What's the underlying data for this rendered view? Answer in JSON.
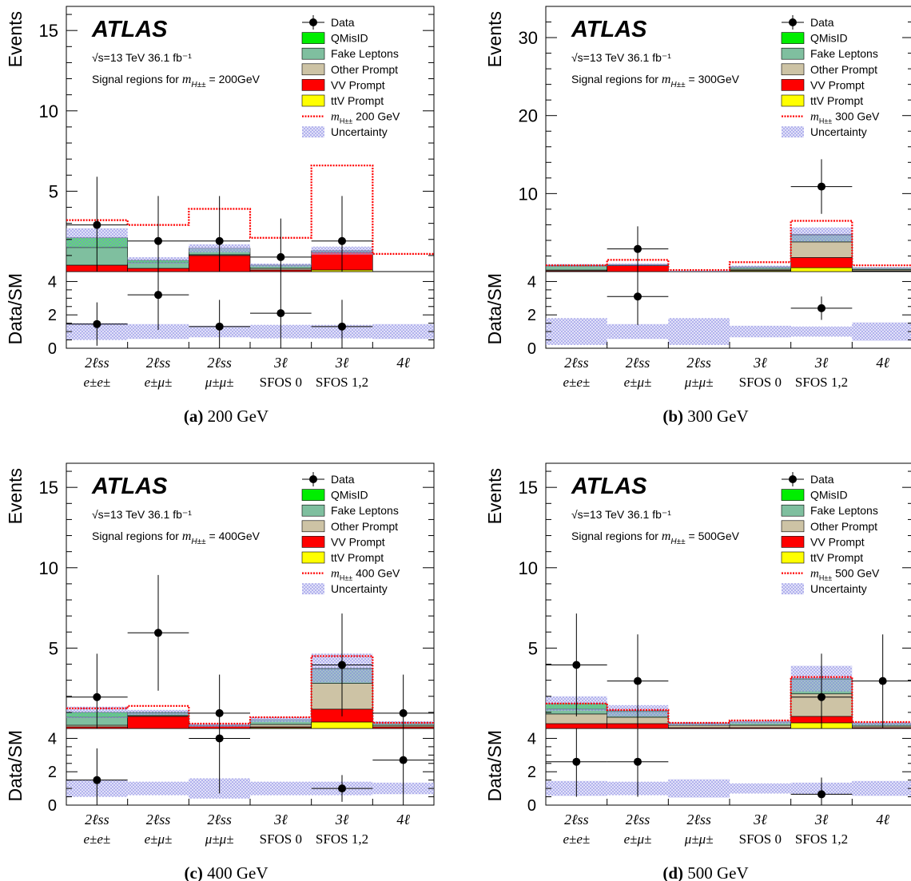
{
  "common": {
    "logo": "ATLAS",
    "energy": "√s=13 TeV  36.1 fb⁻¹",
    "y_label_top": "Events",
    "y_label_bottom": "Data/SM",
    "legend": [
      {
        "key": "data",
        "label": "Data"
      },
      {
        "key": "qmisid",
        "label": "QMisID",
        "color": "#00ee00"
      },
      {
        "key": "fake",
        "label": "Fake Leptons",
        "color": "#7fbf9f"
      },
      {
        "key": "other",
        "label": "Other Prompt",
        "color": "#cdc3a5"
      },
      {
        "key": "vv",
        "label": "VV Prompt",
        "color": "#ff0000"
      },
      {
        "key": "ttv",
        "label": "ttV Prompt",
        "color": "#ffff00"
      },
      {
        "key": "signal",
        "label": "m_H±±",
        "color": "#ff0000"
      },
      {
        "key": "unc",
        "label": "Uncertainty",
        "color": "#9999ee"
      }
    ],
    "categories": [
      {
        "top": "2ℓss",
        "bottom": "e±e±"
      },
      {
        "top": "2ℓss",
        "bottom": "e±μ±"
      },
      {
        "top": "2ℓss",
        "bottom": "μ±μ±"
      },
      {
        "top": "3ℓ",
        "bottom": "SFOS 0"
      },
      {
        "top": "3ℓ",
        "bottom": "SFOS 1,2"
      },
      {
        "top": "4ℓ",
        "bottom": ""
      }
    ]
  },
  "chart_data": [
    {
      "type": "bar",
      "panel_letter": "(a)",
      "caption": "200 GeV",
      "mass_label": "200GeV",
      "signal_label": "200 GeV",
      "signal_region_text": "Signal regions for",
      "ylim": [
        0,
        16.5
      ],
      "yticks": [
        5,
        10,
        15
      ],
      "ratio_ylim": [
        0,
        4.5
      ],
      "ratio_yticks": [
        0,
        2,
        4
      ],
      "stack": {
        "ttv": [
          0,
          0,
          0,
          0,
          0.1,
          0
        ],
        "vv": [
          0.4,
          0.2,
          1.0,
          0.1,
          1.1,
          0
        ],
        "other": [
          0,
          0,
          0.05,
          0.1,
          0,
          0
        ],
        "fake": [
          1.1,
          0.35,
          0.4,
          0.2,
          0.1,
          0
        ],
        "qmisid": [
          0.6,
          0.15,
          0,
          0,
          0,
          0
        ]
      },
      "unc": [
        0.6,
        0.2,
        0.25,
        0.1,
        0.25,
        0
      ],
      "signal": [
        3.2,
        2.9,
        3.9,
        2.1,
        6.6,
        1.1
      ],
      "data": [
        2.9,
        1.9,
        1.9,
        0.9,
        1.9,
        null
      ],
      "data_err": [
        3.0,
        2.8,
        2.8,
        2.4,
        2.8,
        null
      ],
      "ratio": [
        1.45,
        3.2,
        1.3,
        2.1,
        1.3,
        null
      ],
      "ratio_err": [
        1.3,
        2.1,
        1.6,
        2.6,
        1.6,
        null
      ],
      "ratio_unc": [
        0.5,
        0.45,
        0.35,
        0.4,
        0.4,
        0.45
      ]
    },
    {
      "type": "bar",
      "panel_letter": "(b)",
      "caption": "300 GeV",
      "mass_label": "300GeV",
      "signal_label": "300 GeV",
      "signal_region_text": "Signal regions for",
      "ylim": [
        0,
        34
      ],
      "yticks": [
        10,
        20,
        30
      ],
      "ratio_ylim": [
        0,
        4.5
      ],
      "ratio_yticks": [
        0,
        2,
        4
      ],
      "stack": {
        "ttv": [
          0,
          0,
          0,
          0.1,
          0.5,
          0.05
        ],
        "vv": [
          0.1,
          0.75,
          0,
          0.05,
          1.3,
          0.05
        ],
        "other": [
          0.1,
          0.05,
          0.05,
          0.15,
          2.0,
          0.15
        ],
        "fake": [
          0.5,
          0.1,
          0,
          0.3,
          0.9,
          0.2
        ],
        "qmisid": [
          0.1,
          0,
          0,
          0,
          0.05,
          0
        ]
      },
      "unc": [
        0.15,
        0.15,
        0.05,
        0.15,
        0.9,
        0.1
      ],
      "signal": [
        0.8,
        1.5,
        0.2,
        1.2,
        6.5,
        0.8
      ],
      "data": [
        null,
        2.9,
        null,
        null,
        10.9,
        null
      ],
      "data_err": [
        null,
        2.9,
        null,
        null,
        3.5,
        null
      ],
      "ratio": [
        null,
        3.1,
        null,
        null,
        2.4,
        null
      ],
      "ratio_err": [
        null,
        1.7,
        null,
        null,
        0.7,
        null
      ],
      "ratio_unc": [
        0.8,
        0.45,
        0.8,
        0.35,
        0.3,
        0.55
      ]
    },
    {
      "type": "bar",
      "panel_letter": "(c)",
      "caption": "400 GeV",
      "mass_label": "400GeV",
      "signal_label": "400 GeV",
      "signal_region_text": "Signal regions for",
      "ylim": [
        0,
        16.5
      ],
      "yticks": [
        5,
        10,
        15
      ],
      "ratio_ylim": [
        0,
        4.5
      ],
      "ratio_yticks": [
        0,
        2,
        4
      ],
      "stack": {
        "ttv": [
          0,
          0,
          0,
          0.05,
          0.4,
          0
        ],
        "vv": [
          0.1,
          0.75,
          0.15,
          0.05,
          0.8,
          0.1
        ],
        "other": [
          0.1,
          0.05,
          0,
          0.15,
          1.6,
          0.1
        ],
        "fake": [
          0.5,
          0.15,
          0.05,
          0.3,
          0.9,
          0.15
        ],
        "qmisid": [
          0.3,
          0.05,
          0,
          0,
          0.05,
          0
        ]
      },
      "unc": [
        0.35,
        0.15,
        0.1,
        0.15,
        0.9,
        0.1
      ],
      "signal": [
        1.25,
        1.4,
        0.3,
        0.7,
        4.5,
        0.35
      ],
      "data": [
        1.95,
        5.95,
        0.95,
        null,
        3.95,
        0.95
      ],
      "data_err": [
        2.7,
        3.6,
        2.4,
        null,
        3.2,
        2.4
      ],
      "ratio": [
        1.5,
        null,
        4.0,
        null,
        1.0,
        2.7
      ],
      "ratio_err": [
        1.9,
        null,
        3.3,
        null,
        0.8,
        2.7
      ],
      "ratio_unc": [
        0.5,
        0.4,
        0.6,
        0.4,
        0.4,
        0.35
      ]
    },
    {
      "type": "bar",
      "panel_letter": "(d)",
      "caption": "500 GeV",
      "mass_label": "500GeV",
      "signal_label": "500 GeV",
      "signal_region_text": "Signal regions for",
      "ylim": [
        0,
        16.5
      ],
      "yticks": [
        5,
        10,
        15
      ],
      "ratio_ylim": [
        0,
        4.5
      ],
      "ratio_yticks": [
        0,
        2,
        4
      ],
      "stack": {
        "ttv": [
          0,
          0,
          0,
          0,
          0.35,
          0
        ],
        "vv": [
          0.3,
          0.3,
          0.05,
          0.05,
          0.4,
          0.05
        ],
        "other": [
          0.6,
          0.4,
          0.15,
          0.15,
          1.4,
          0.1
        ],
        "fake": [
          0.3,
          0.35,
          0.1,
          0.2,
          0.9,
          0.15
        ],
        "qmisid": [
          0.35,
          0.05,
          0,
          0,
          0.05,
          0
        ]
      },
      "unc": [
        0.45,
        0.35,
        0.1,
        0.1,
        0.8,
        0.1
      ],
      "signal": [
        1.55,
        1.15,
        0.35,
        0.5,
        3.2,
        0.4
      ],
      "data": [
        3.95,
        2.95,
        null,
        null,
        1.95,
        2.95
      ],
      "data_err": [
        3.2,
        2.9,
        null,
        null,
        2.7,
        2.9
      ],
      "ratio": [
        2.6,
        2.6,
        null,
        null,
        0.65,
        null
      ],
      "ratio_err": [
        2.1,
        2.1,
        null,
        null,
        1.0,
        null
      ],
      "ratio_unc": [
        0.45,
        0.4,
        0.55,
        0.3,
        0.35,
        0.45
      ]
    }
  ]
}
